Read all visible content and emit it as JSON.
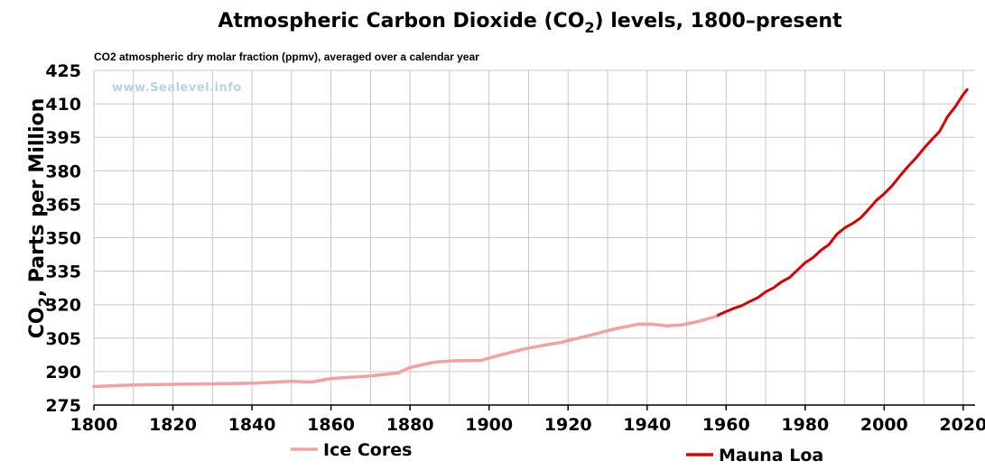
{
  "chart_data": {
    "type": "line",
    "title_main": "Atmospheric Carbon Dioxide (CO",
    "title_sub": "2",
    "title_end": ") levels, 1800–present",
    "subtitle": "CO2 atmospheric dry molar fraction (ppmv), averaged over a calendar year",
    "watermark": "www.Sealevel.info",
    "ylabel_main": "CO",
    "ylabel_sub": "2",
    "ylabel_end": ", Parts per Million",
    "xlim": [
      1800,
      2023
    ],
    "ylim": [
      275,
      425
    ],
    "xticks": [
      1800,
      1820,
      1840,
      1860,
      1880,
      1900,
      1920,
      1940,
      1960,
      1980,
      2000,
      2020
    ],
    "yticks": [
      275,
      290,
      305,
      320,
      335,
      350,
      365,
      380,
      395,
      410,
      425
    ],
    "grid": true,
    "legend_placement": "bottom",
    "series": [
      {
        "name": "Ice Cores",
        "color": "#f4a0a0",
        "x": [
          1800,
          1810,
          1820,
          1830,
          1840,
          1850,
          1855,
          1860,
          1870,
          1877,
          1880,
          1886,
          1891,
          1898,
          1902,
          1908,
          1912,
          1918,
          1925,
          1932,
          1938,
          1941,
          1945,
          1949,
          1953,
          1956,
          1958
        ],
        "y": [
          283.3,
          284.0,
          284.3,
          284.5,
          284.8,
          285.6,
          285.3,
          286.9,
          288.0,
          289.4,
          291.8,
          294.2,
          294.8,
          295.0,
          297.0,
          299.8,
          301.2,
          303.0,
          306.0,
          309.2,
          311.3,
          311.3,
          310.5,
          311.0,
          312.5,
          314.0,
          315.0
        ]
      },
      {
        "name": "Mauna Loa",
        "color": "#dd0000",
        "x": [
          1958,
          1960,
          1962,
          1964,
          1966,
          1968,
          1970,
          1972,
          1974,
          1976,
          1978,
          1980,
          1982,
          1984,
          1986,
          1988,
          1990,
          1992,
          1994,
          1996,
          1998,
          2000,
          2002,
          2004,
          2006,
          2008,
          2010,
          2012,
          2014,
          2016,
          2018,
          2020,
          2021
        ],
        "y": [
          315.3,
          316.9,
          318.4,
          319.6,
          321.4,
          323.1,
          325.7,
          327.5,
          330.2,
          332.1,
          335.4,
          338.8,
          341.1,
          344.4,
          346.9,
          351.5,
          354.4,
          356.4,
          358.8,
          362.6,
          366.7,
          369.7,
          373.3,
          377.7,
          381.9,
          385.6,
          389.9,
          393.9,
          397.6,
          404.2,
          408.7,
          414.2,
          416.4
        ]
      }
    ]
  }
}
